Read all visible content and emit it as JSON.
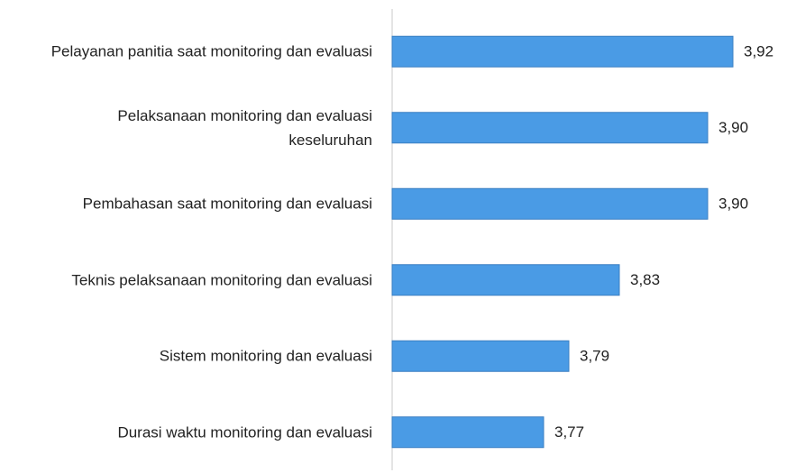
{
  "chart_data": {
    "type": "bar",
    "orientation": "horizontal",
    "categories": [
      "Pelayanan panitia saat monitoring dan evaluasi",
      "Pelaksanaan monitoring dan evaluasi keseluruhan",
      "Pembahasan saat monitoring dan evaluasi",
      "Teknis pelaksanaan monitoring dan evaluasi",
      "Sistem monitoring dan evaluasi",
      "Durasi waktu monitoring dan evaluasi"
    ],
    "values": [
      3.92,
      3.9,
      3.9,
      3.83,
      3.79,
      3.77
    ],
    "value_labels": [
      "3,92",
      "3,90",
      "3,90",
      "3,83",
      "3,79",
      "3,77"
    ],
    "color": "#4a9be5",
    "xlim": [
      3.65,
      3.95
    ]
  }
}
